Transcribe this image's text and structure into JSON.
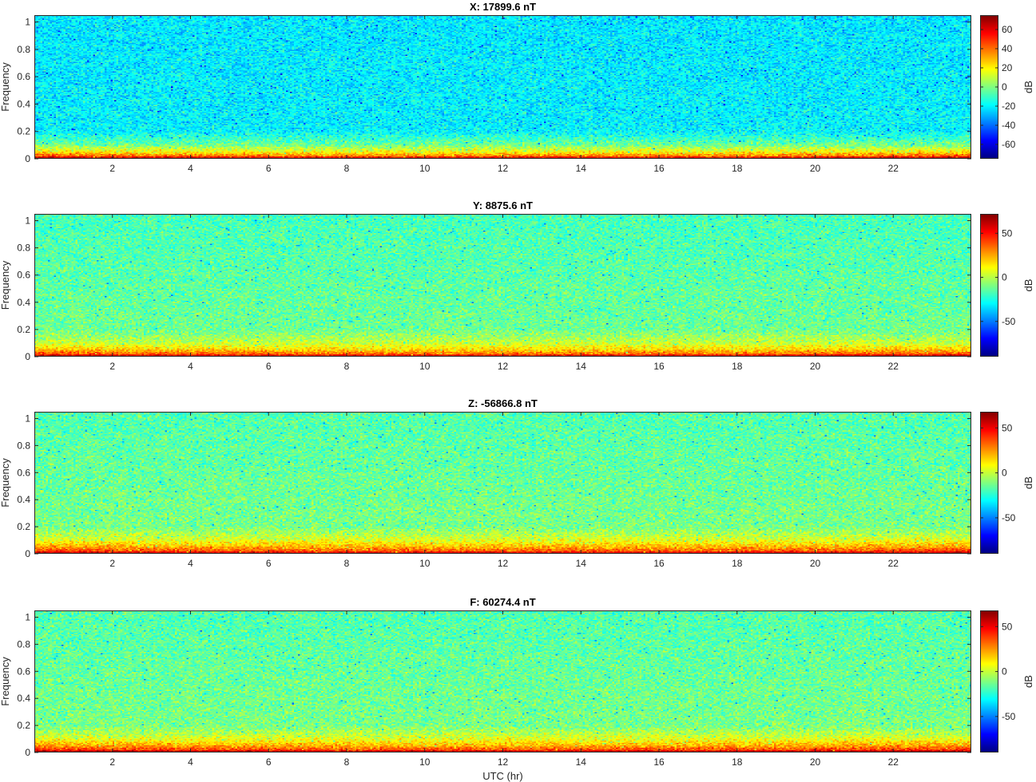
{
  "chart_data": [
    {
      "type": "heatmap",
      "title": "X: 17899.6 nT",
      "xlabel": "",
      "ylabel": "Frequency",
      "xlim": [
        0,
        24
      ],
      "ylim": [
        0,
        1.05
      ],
      "xticks": [
        2,
        4,
        6,
        8,
        10,
        12,
        14,
        16,
        18,
        20,
        22
      ],
      "yticks": [
        0,
        0.2,
        0.4,
        0.6,
        0.8,
        1
      ],
      "colorbar": {
        "label": "dB",
        "range": [
          -75,
          75
        ],
        "ticks": [
          -60,
          -40,
          -20,
          0,
          20,
          40,
          60
        ]
      },
      "colormap": "jet",
      "level_profile_db": {
        "frequency": [
          0.0,
          0.01,
          0.02,
          0.05,
          0.1,
          0.2,
          1.0
        ],
        "db_late_hours": [
          72,
          55,
          38,
          18,
          -2,
          -20,
          -22
        ]
      }
    },
    {
      "type": "heatmap",
      "title": "Y: 8875.6 nT",
      "xlabel": "",
      "ylabel": "Frequency",
      "xlim": [
        0,
        24
      ],
      "ylim": [
        0,
        1.05
      ],
      "xticks": [
        2,
        4,
        6,
        8,
        10,
        12,
        14,
        16,
        18,
        20,
        22
      ],
      "yticks": [
        0,
        0.2,
        0.4,
        0.6,
        0.8,
        1
      ],
      "colorbar": {
        "label": "dB",
        "range": [
          -90,
          72
        ],
        "ticks": [
          -50,
          0,
          50
        ]
      },
      "colormap": "jet",
      "level_profile_db": {
        "frequency": [
          0.0,
          0.01,
          0.02,
          0.05,
          0.1,
          0.2,
          1.0
        ],
        "db_late_hours": [
          68,
          50,
          35,
          18,
          2,
          -12,
          -18
        ]
      }
    },
    {
      "type": "heatmap",
      "title": "Z: -56866.8 nT",
      "xlabel": "",
      "ylabel": "Frequency",
      "xlim": [
        0,
        24
      ],
      "ylim": [
        0,
        1.05
      ],
      "xticks": [
        2,
        4,
        6,
        8,
        10,
        12,
        14,
        16,
        18,
        20,
        22
      ],
      "yticks": [
        0,
        0.2,
        0.4,
        0.6,
        0.8,
        1
      ],
      "colorbar": {
        "label": "dB",
        "range": [
          -90,
          68
        ],
        "ticks": [
          -50,
          0,
          50
        ]
      },
      "colormap": "jet",
      "level_profile_db": {
        "frequency": [
          0.0,
          0.01,
          0.02,
          0.05,
          0.1,
          0.2,
          1.0
        ],
        "db_late_hours": [
          60,
          48,
          35,
          20,
          4,
          -12,
          -18
        ]
      }
    },
    {
      "type": "heatmap",
      "title": "F: 60274.4 nT",
      "xlabel": "UTC (hr)",
      "ylabel": "Frequency",
      "xlim": [
        0,
        24
      ],
      "ylim": [
        0,
        1.05
      ],
      "xticks": [
        2,
        4,
        6,
        8,
        10,
        12,
        14,
        16,
        18,
        20,
        22
      ],
      "yticks": [
        0,
        0.2,
        0.4,
        0.6,
        0.8,
        1
      ],
      "colorbar": {
        "label": "dB",
        "range": [
          -90,
          68
        ],
        "ticks": [
          -50,
          0,
          50
        ]
      },
      "colormap": "jet",
      "level_profile_db": {
        "frequency": [
          0.0,
          0.01,
          0.02,
          0.05,
          0.1,
          0.2,
          1.0
        ],
        "db_late_hours": [
          66,
          50,
          36,
          20,
          4,
          -12,
          -18
        ]
      }
    }
  ]
}
